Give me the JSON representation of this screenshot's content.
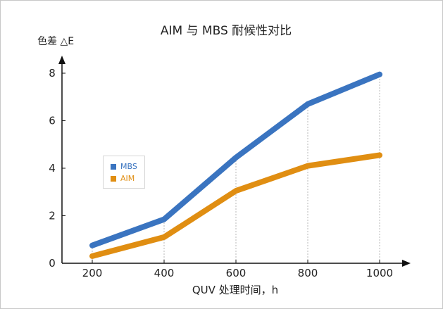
{
  "chart_data": {
    "type": "line",
    "title": "AIM 与 MBS 耐候性对比",
    "xlabel": "QUV 处理时间，h",
    "ylabel": "色差 △E",
    "x": [
      200,
      400,
      600,
      800,
      1000
    ],
    "x_tick_labels": [
      "200",
      "400",
      "600",
      "800",
      "1000"
    ],
    "y_ticks": [
      0,
      2,
      4,
      6,
      8
    ],
    "y_tick_labels": [
      "0",
      "2",
      "4",
      "6",
      "8"
    ],
    "xlim": [
      100,
      1100
    ],
    "ylim": [
      0,
      8.6
    ],
    "grid": "vertical-dotted",
    "legend_position": "center-left",
    "series": [
      {
        "name": "MBS",
        "color": "#3a74c0",
        "values": [
          0.75,
          1.85,
          4.45,
          6.7,
          7.95
        ]
      },
      {
        "name": "AIM",
        "color": "#e08e12",
        "values": [
          0.3,
          1.1,
          3.05,
          4.1,
          4.55
        ]
      }
    ]
  }
}
